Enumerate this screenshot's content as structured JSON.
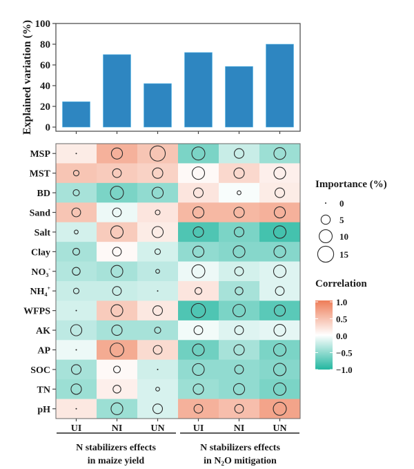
{
  "chart_data": [
    {
      "type": "bar",
      "title": "",
      "xlabel": "",
      "ylabel": "Explained variation (%)",
      "ylim": [
        0,
        100
      ],
      "yticks": [
        0,
        20,
        40,
        60,
        80,
        100
      ],
      "categories": [
        "UI",
        "NI",
        "UN",
        "UI",
        "NI",
        "UN"
      ],
      "values": [
        24.5,
        70,
        42,
        72,
        58.5,
        80
      ],
      "bar_color": "#2e86c1"
    },
    {
      "type": "heatmap",
      "rows": [
        "MSP",
        "MST",
        "BD",
        "Sand",
        "Salt",
        "Clay",
        "NO3-",
        "NH4+",
        "WFPS",
        "AK",
        "AP",
        "SOC",
        "TN",
        "pH"
      ],
      "row_labels": [
        {
          "main": "MSP",
          "sub": "",
          "sup": ""
        },
        {
          "main": "MST",
          "sub": "",
          "sup": ""
        },
        {
          "main": "BD",
          "sub": "",
          "sup": ""
        },
        {
          "main": "Sand",
          "sub": "",
          "sup": ""
        },
        {
          "main": "Salt",
          "sub": "",
          "sup": ""
        },
        {
          "main": "Clay",
          "sub": "",
          "sup": ""
        },
        {
          "main": "NO",
          "sub": "3",
          "sup": "-"
        },
        {
          "main": "NH",
          "sub": "4",
          "sup": "+"
        },
        {
          "main": "WFPS",
          "sub": "",
          "sup": ""
        },
        {
          "main": "AK",
          "sub": "",
          "sup": ""
        },
        {
          "main": "AP",
          "sub": "",
          "sup": ""
        },
        {
          "main": "SOC",
          "sub": "",
          "sup": ""
        },
        {
          "main": "TN",
          "sub": "",
          "sup": ""
        },
        {
          "main": "pH",
          "sub": "",
          "sup": ""
        }
      ],
      "columns": [
        "UI",
        "NI",
        "UN",
        "UI",
        "NI",
        "UN"
      ],
      "correlation": [
        [
          0.15,
          0.6,
          0.45,
          -0.6,
          -0.25,
          -0.45
        ],
        [
          0.45,
          0.4,
          0.35,
          0.05,
          0.3,
          0.12
        ],
        [
          -0.4,
          -0.6,
          -0.5,
          0.2,
          -0.03,
          0.15
        ],
        [
          0.45,
          -0.08,
          0.2,
          0.55,
          0.55,
          0.6
        ],
        [
          -0.2,
          0.4,
          0.15,
          -0.8,
          -0.6,
          -0.85
        ],
        [
          -0.4,
          0.05,
          -0.2,
          -0.5,
          -0.55,
          -0.55
        ],
        [
          -0.35,
          -0.4,
          -0.3,
          -0.08,
          -0.2,
          -0.15
        ],
        [
          -0.25,
          -0.25,
          -0.22,
          0.2,
          -0.4,
          -0.15
        ],
        [
          -0.2,
          0.4,
          0.18,
          -0.8,
          -0.6,
          -0.75
        ],
        [
          -0.3,
          -0.4,
          -0.4,
          -0.06,
          -0.15,
          -0.12
        ],
        [
          -0.08,
          0.65,
          0.28,
          -0.65,
          -0.4,
          -0.6
        ],
        [
          -0.4,
          0.05,
          -0.22,
          -0.5,
          -0.5,
          -0.55
        ],
        [
          -0.45,
          0.12,
          -0.18,
          -0.45,
          -0.5,
          -0.6
        ],
        [
          0.18,
          -0.45,
          -0.18,
          0.6,
          0.5,
          0.7
        ]
      ],
      "importance": [
        [
          0,
          8,
          15,
          11,
          6,
          9
        ],
        [
          2,
          5,
          7,
          10,
          7,
          9
        ],
        [
          2.5,
          11,
          8,
          6,
          1,
          6
        ],
        [
          5,
          5,
          1.5,
          8,
          7,
          8
        ],
        [
          1,
          10,
          8,
          7,
          6,
          10
        ],
        [
          3,
          5,
          2,
          8,
          9,
          9
        ],
        [
          4,
          9,
          1,
          11,
          5,
          10
        ],
        [
          2,
          5,
          0,
          3,
          4,
          5
        ],
        [
          0,
          9,
          6,
          13,
          10,
          8
        ],
        [
          8,
          7,
          2.5,
          5,
          5,
          9
        ],
        [
          0,
          12,
          5,
          9,
          7,
          10
        ],
        [
          6,
          3,
          0,
          9,
          5,
          10
        ],
        [
          7,
          4,
          1,
          7,
          8,
          10
        ],
        [
          0,
          9,
          6,
          5,
          5,
          11
        ]
      ],
      "groups": [
        {
          "line1": "N stabilizers effects",
          "line2_pre": "in maize yield",
          "line2_sub": "",
          "line2_post": ""
        },
        {
          "line1": "N stabilizers effects",
          "line2_pre": "in N",
          "line2_sub": "2",
          "line2_post": "O mitigation"
        }
      ],
      "size_legend": {
        "title": "Importance (%)",
        "values": [
          0,
          5,
          10,
          15
        ],
        "labels": [
          "0",
          "5",
          "10",
          "15"
        ]
      },
      "color_legend": {
        "title": "Correlation",
        "range": [
          -1.0,
          1.0
        ],
        "ticks": [
          1.0,
          0.5,
          0.0,
          -0.5,
          -1.0
        ],
        "tick_labels": [
          "1.0",
          "0.5",
          "0.0",
          "−0.5",
          "−1.0"
        ],
        "colors": {
          "high": "#ee7d58",
          "mid": "#ffffff",
          "low": "#23b7a0"
        }
      }
    }
  ]
}
